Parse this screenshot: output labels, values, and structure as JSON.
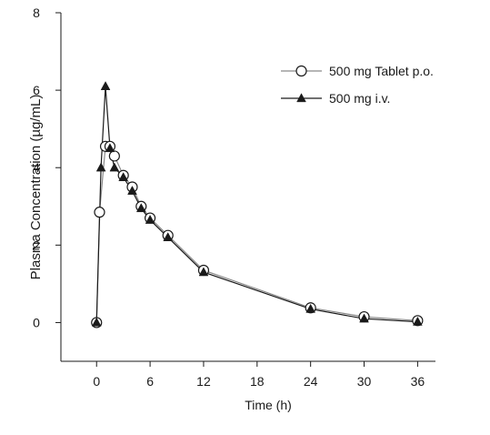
{
  "chart_data": {
    "type": "line",
    "title": "",
    "xlabel": "Time (h)",
    "ylabel": "Plasma Concentration (µg/mL)",
    "xlim": [
      -4,
      38
    ],
    "ylim": [
      -1,
      8
    ],
    "xticks": [
      0,
      6,
      12,
      18,
      24,
      30,
      36
    ],
    "yticks": [
      0,
      2,
      4,
      6,
      8
    ],
    "grid": false,
    "legend_position": "top-right",
    "series": [
      {
        "name": "500 mg Tablet p.o.",
        "marker": "open-circle",
        "line_color": "#8a8a8a",
        "x": [
          0,
          0.33,
          1,
          1.5,
          2,
          3,
          4,
          5,
          6,
          8,
          12,
          24,
          30,
          36
        ],
        "y": [
          0.0,
          2.85,
          4.55,
          4.55,
          4.3,
          3.8,
          3.5,
          3.0,
          2.7,
          2.25,
          1.35,
          0.38,
          0.15,
          0.05
        ]
      },
      {
        "name": "500 mg i.v.",
        "marker": "filled-triangle",
        "line_color": "#1a1a1a",
        "x": [
          0,
          0.5,
          1,
          1.5,
          2,
          3,
          4,
          5,
          6,
          8,
          12,
          24,
          30,
          36
        ],
        "y": [
          0.0,
          4.0,
          6.1,
          4.5,
          4.0,
          3.75,
          3.4,
          2.95,
          2.65,
          2.2,
          1.3,
          0.35,
          0.1,
          0.02
        ]
      }
    ]
  }
}
